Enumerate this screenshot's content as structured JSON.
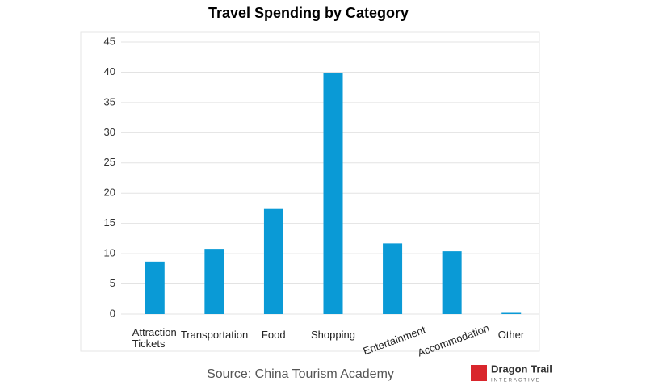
{
  "chart_data": {
    "type": "bar",
    "title": "Travel Spending by Category",
    "categories": [
      "Attraction Tickets",
      "Transportation",
      "Food",
      "Shopping",
      "Entertainment",
      "Accommodation",
      "Other"
    ],
    "values": [
      8.7,
      10.8,
      17.4,
      39.8,
      11.7,
      10.4,
      0.2
    ],
    "color": "#0a9ad6",
    "ylim": [
      0,
      45
    ],
    "yticks": [
      0,
      5,
      10,
      15,
      20,
      25,
      30,
      35,
      40,
      45
    ],
    "grid": true,
    "source": "Source: China Tourism Academy",
    "logo": {
      "name": "Dragon Trail",
      "tagline": "INTERACTIVE"
    }
  }
}
